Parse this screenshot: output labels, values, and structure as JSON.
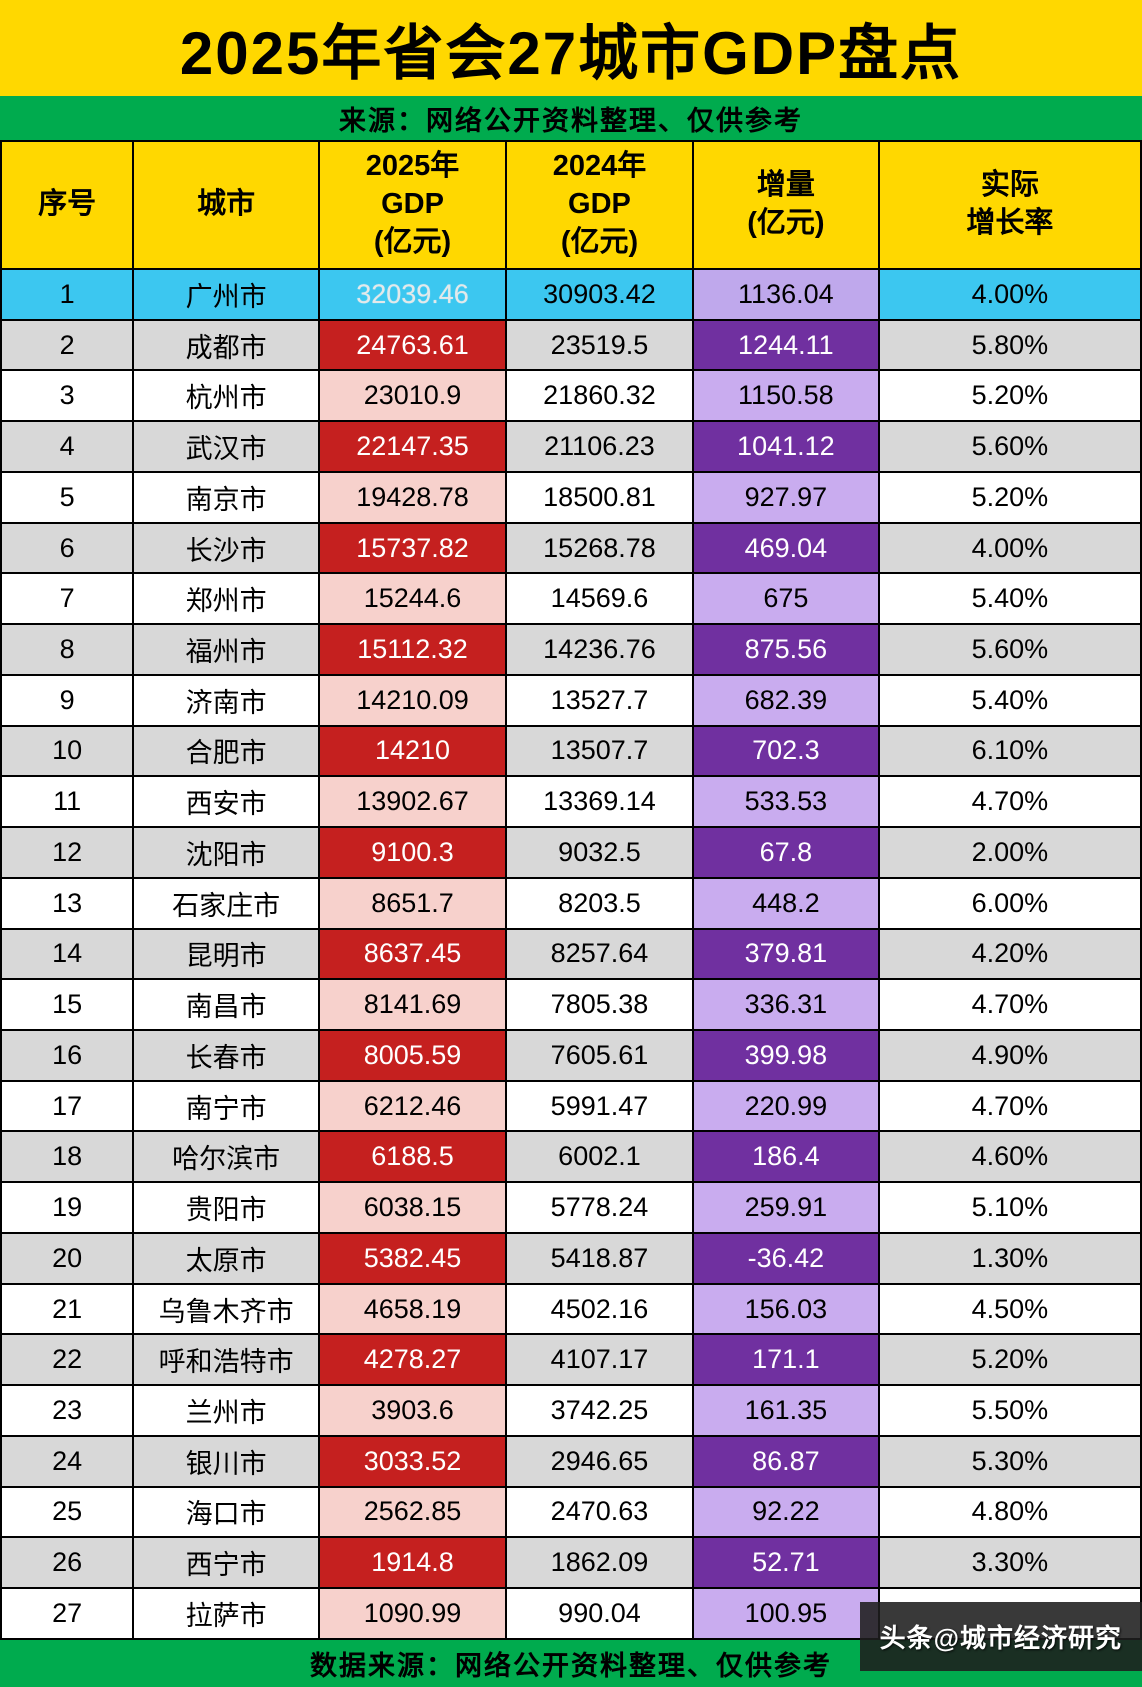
{
  "title": "2025年省会27城市GDP盘点",
  "source_top": "来源：网络公开资料整理、仅供参考",
  "source_bottom": "数据来源：网络公开资料整理、仅供参考",
  "watermark": "头条@城市经济研究",
  "colors": {
    "banner_yellow": "#FFD800",
    "bar_green": "#00AB4E",
    "highlight_cyan": "#3CC7F0",
    "gdp_red": "#C5201F",
    "gdp_pink": "#F7D1CC",
    "delta_purple_dark": "#7030A0",
    "delta_purple_light": "#C9ACEF",
    "row_gray": "#D8D8D8",
    "row_white": "#FFFFFF"
  },
  "columns": [
    {
      "key": "rank",
      "lines": [
        "序号"
      ]
    },
    {
      "key": "city",
      "lines": [
        "城市"
      ]
    },
    {
      "key": "gdp2025",
      "lines": [
        "2025年",
        "GDP",
        "(亿元)"
      ]
    },
    {
      "key": "gdp2024",
      "lines": [
        "2024年",
        "GDP",
        "(亿元)"
      ]
    },
    {
      "key": "delta",
      "lines": [
        "增量",
        "(亿元)"
      ]
    },
    {
      "key": "growth",
      "lines": [
        "实际",
        "增长率"
      ]
    }
  ],
  "chart_data": {
    "type": "table",
    "title": "2025年省会27城市GDP盘点",
    "columns": [
      "序号",
      "城市",
      "2025年GDP(亿元)",
      "2024年GDP(亿元)",
      "增量(亿元)",
      "实际增长率"
    ],
    "rows": [
      {
        "rank": "1",
        "city": "广州市",
        "gdp2025": "32039.46",
        "gdp2024": "30903.42",
        "delta": "1136.04",
        "growth": "4.00%"
      },
      {
        "rank": "2",
        "city": "成都市",
        "gdp2025": "24763.61",
        "gdp2024": "23519.5",
        "delta": "1244.11",
        "growth": "5.80%"
      },
      {
        "rank": "3",
        "city": "杭州市",
        "gdp2025": "23010.9",
        "gdp2024": "21860.32",
        "delta": "1150.58",
        "growth": "5.20%"
      },
      {
        "rank": "4",
        "city": "武汉市",
        "gdp2025": "22147.35",
        "gdp2024": "21106.23",
        "delta": "1041.12",
        "growth": "5.60%"
      },
      {
        "rank": "5",
        "city": "南京市",
        "gdp2025": "19428.78",
        "gdp2024": "18500.81",
        "delta": "927.97",
        "growth": "5.20%"
      },
      {
        "rank": "6",
        "city": "长沙市",
        "gdp2025": "15737.82",
        "gdp2024": "15268.78",
        "delta": "469.04",
        "growth": "4.00%"
      },
      {
        "rank": "7",
        "city": "郑州市",
        "gdp2025": "15244.6",
        "gdp2024": "14569.6",
        "delta": "675",
        "growth": "5.40%"
      },
      {
        "rank": "8",
        "city": "福州市",
        "gdp2025": "15112.32",
        "gdp2024": "14236.76",
        "delta": "875.56",
        "growth": "5.60%"
      },
      {
        "rank": "9",
        "city": "济南市",
        "gdp2025": "14210.09",
        "gdp2024": "13527.7",
        "delta": "682.39",
        "growth": "5.40%"
      },
      {
        "rank": "10",
        "city": "合肥市",
        "gdp2025": "14210",
        "gdp2024": "13507.7",
        "delta": "702.3",
        "growth": "6.10%"
      },
      {
        "rank": "11",
        "city": "西安市",
        "gdp2025": "13902.67",
        "gdp2024": "13369.14",
        "delta": "533.53",
        "growth": "4.70%"
      },
      {
        "rank": "12",
        "city": "沈阳市",
        "gdp2025": "9100.3",
        "gdp2024": "9032.5",
        "delta": "67.8",
        "growth": "2.00%"
      },
      {
        "rank": "13",
        "city": "石家庄市",
        "gdp2025": "8651.7",
        "gdp2024": "8203.5",
        "delta": "448.2",
        "growth": "6.00%"
      },
      {
        "rank": "14",
        "city": "昆明市",
        "gdp2025": "8637.45",
        "gdp2024": "8257.64",
        "delta": "379.81",
        "growth": "4.20%"
      },
      {
        "rank": "15",
        "city": "南昌市",
        "gdp2025": "8141.69",
        "gdp2024": "7805.38",
        "delta": "336.31",
        "growth": "4.70%"
      },
      {
        "rank": "16",
        "city": "长春市",
        "gdp2025": "8005.59",
        "gdp2024": "7605.61",
        "delta": "399.98",
        "growth": "4.90%"
      },
      {
        "rank": "17",
        "city": "南宁市",
        "gdp2025": "6212.46",
        "gdp2024": "5991.47",
        "delta": "220.99",
        "growth": "4.70%"
      },
      {
        "rank": "18",
        "city": "哈尔滨市",
        "gdp2025": "6188.5",
        "gdp2024": "6002.1",
        "delta": "186.4",
        "growth": "4.60%"
      },
      {
        "rank": "19",
        "city": "贵阳市",
        "gdp2025": "6038.15",
        "gdp2024": "5778.24",
        "delta": "259.91",
        "growth": "5.10%"
      },
      {
        "rank": "20",
        "city": "太原市",
        "gdp2025": "5382.45",
        "gdp2024": "5418.87",
        "delta": "-36.42",
        "growth": "1.30%"
      },
      {
        "rank": "21",
        "city": "乌鲁木齐市",
        "gdp2025": "4658.19",
        "gdp2024": "4502.16",
        "delta": "156.03",
        "growth": "4.50%"
      },
      {
        "rank": "22",
        "city": "呼和浩特市",
        "gdp2025": "4278.27",
        "gdp2024": "4107.17",
        "delta": "171.1",
        "growth": "5.20%"
      },
      {
        "rank": "23",
        "city": "兰州市",
        "gdp2025": "3903.6",
        "gdp2024": "3742.25",
        "delta": "161.35",
        "growth": "5.50%"
      },
      {
        "rank": "24",
        "city": "银川市",
        "gdp2025": "3033.52",
        "gdp2024": "2946.65",
        "delta": "86.87",
        "growth": "5.30%"
      },
      {
        "rank": "25",
        "city": "海口市",
        "gdp2025": "2562.85",
        "gdp2024": "2470.63",
        "delta": "92.22",
        "growth": "4.80%"
      },
      {
        "rank": "26",
        "city": "西宁市",
        "gdp2025": "1914.8",
        "gdp2024": "1862.09",
        "delta": "52.71",
        "growth": "3.30%"
      },
      {
        "rank": "27",
        "city": "拉萨市",
        "gdp2025": "1090.99",
        "gdp2024": "990.04",
        "delta": "100.95",
        "growth": ""
      }
    ]
  }
}
